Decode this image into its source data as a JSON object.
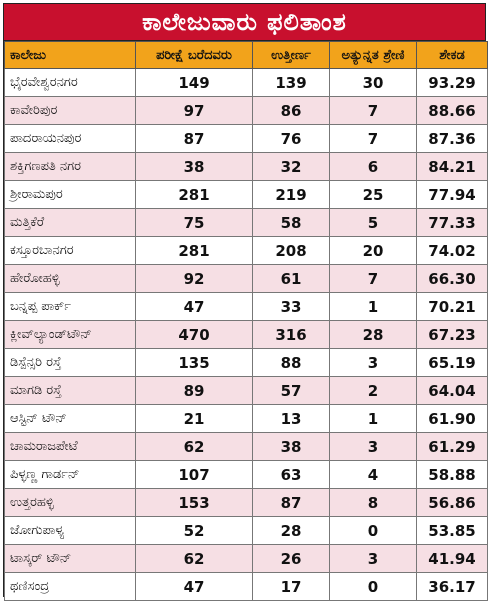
{
  "title": "ಕಾಲೇಜುವಾರು ಫಲಿತಾಂಶ",
  "columns": [
    "ಕಾಲೇಜು",
    "ಪರೀಕ್ಷೆ ಬರೆದವರು",
    "ಉತ್ತೀರ್ಣ",
    "ಅತ್ಯುನ್ನತ ಶ್ರೇಣಿ",
    "ಶೇಕಡ"
  ],
  "rows": [
    [
      "ಭೈರವೇಶ್ವರನಗರ",
      "149",
      "139",
      "30",
      "93.29"
    ],
    [
      "ಕಾವೇರಿಪುರ",
      "97",
      "86",
      "7",
      "88.66"
    ],
    [
      "ಪಾದರಾಯನಪುರ",
      "87",
      "76",
      "7",
      "87.36"
    ],
    [
      "ಶಕ್ತಿಗಣಪತಿ ನಗರ",
      "38",
      "32",
      "6",
      "84.21"
    ],
    [
      "ಶ್ರೀರಾಮಪುರ",
      "281",
      "219",
      "25",
      "77.94"
    ],
    [
      "ಮತ್ತಿಕೆರೆ",
      "75",
      "58",
      "5",
      "77.33"
    ],
    [
      "ಕಸ್ತೂರಬಾನಗರ",
      "281",
      "208",
      "20",
      "74.02"
    ],
    [
      "ಹೇರೋಹಳ್ಳಿ",
      "92",
      "61",
      "7",
      "66.30"
    ],
    [
      "ಬನ್ನಪ್ಪ ಪಾರ್ಕ್",
      "47",
      "33",
      "1",
      "70.21"
    ],
    [
      "ಕ್ಲೀವ್‌ಲ್ಯಾಂಡ್‌ಟೌನ್",
      "470",
      "316",
      "28",
      "67.23"
    ],
    [
      "ಡಿಸ್ಪೆನ್ಸರಿ ರಸ್ತೆ",
      "135",
      "88",
      "3",
      "65.19"
    ],
    [
      "ಮಾಗಡಿ ರಸ್ತೆ",
      "89",
      "57",
      "2",
      "64.04"
    ],
    [
      "ಆಸ್ಟಿನ್ ಟೌನ್",
      "21",
      "13",
      "1",
      "61.90"
    ],
    [
      "ಚಾಮರಾಜಪೇಟೆ",
      "62",
      "38",
      "3",
      "61.29"
    ],
    [
      "ಪಿಳ್ಳಣ್ಣ ಗಾರ್ಡನ್",
      "107",
      "63",
      "4",
      "58.88"
    ],
    [
      "ಉತ್ತರಹಳ್ಳಿ",
      "153",
      "87",
      "8",
      "56.86"
    ],
    [
      "ಜೋಗುಪಾಳ್ಯ",
      "52",
      "28",
      "0",
      "53.85"
    ],
    [
      "ಟಾಸ್ಕರ್ ಟೌನ್",
      "62",
      "26",
      "3",
      "41.94"
    ],
    [
      "ಥಣಿಸಂದ್ರ",
      "47",
      "17",
      "0",
      "36.17"
    ]
  ],
  "colors": {
    "title_bg": "#c8102e",
    "header_bg": "#f2a31b",
    "stripe": "#f6dfe4"
  }
}
